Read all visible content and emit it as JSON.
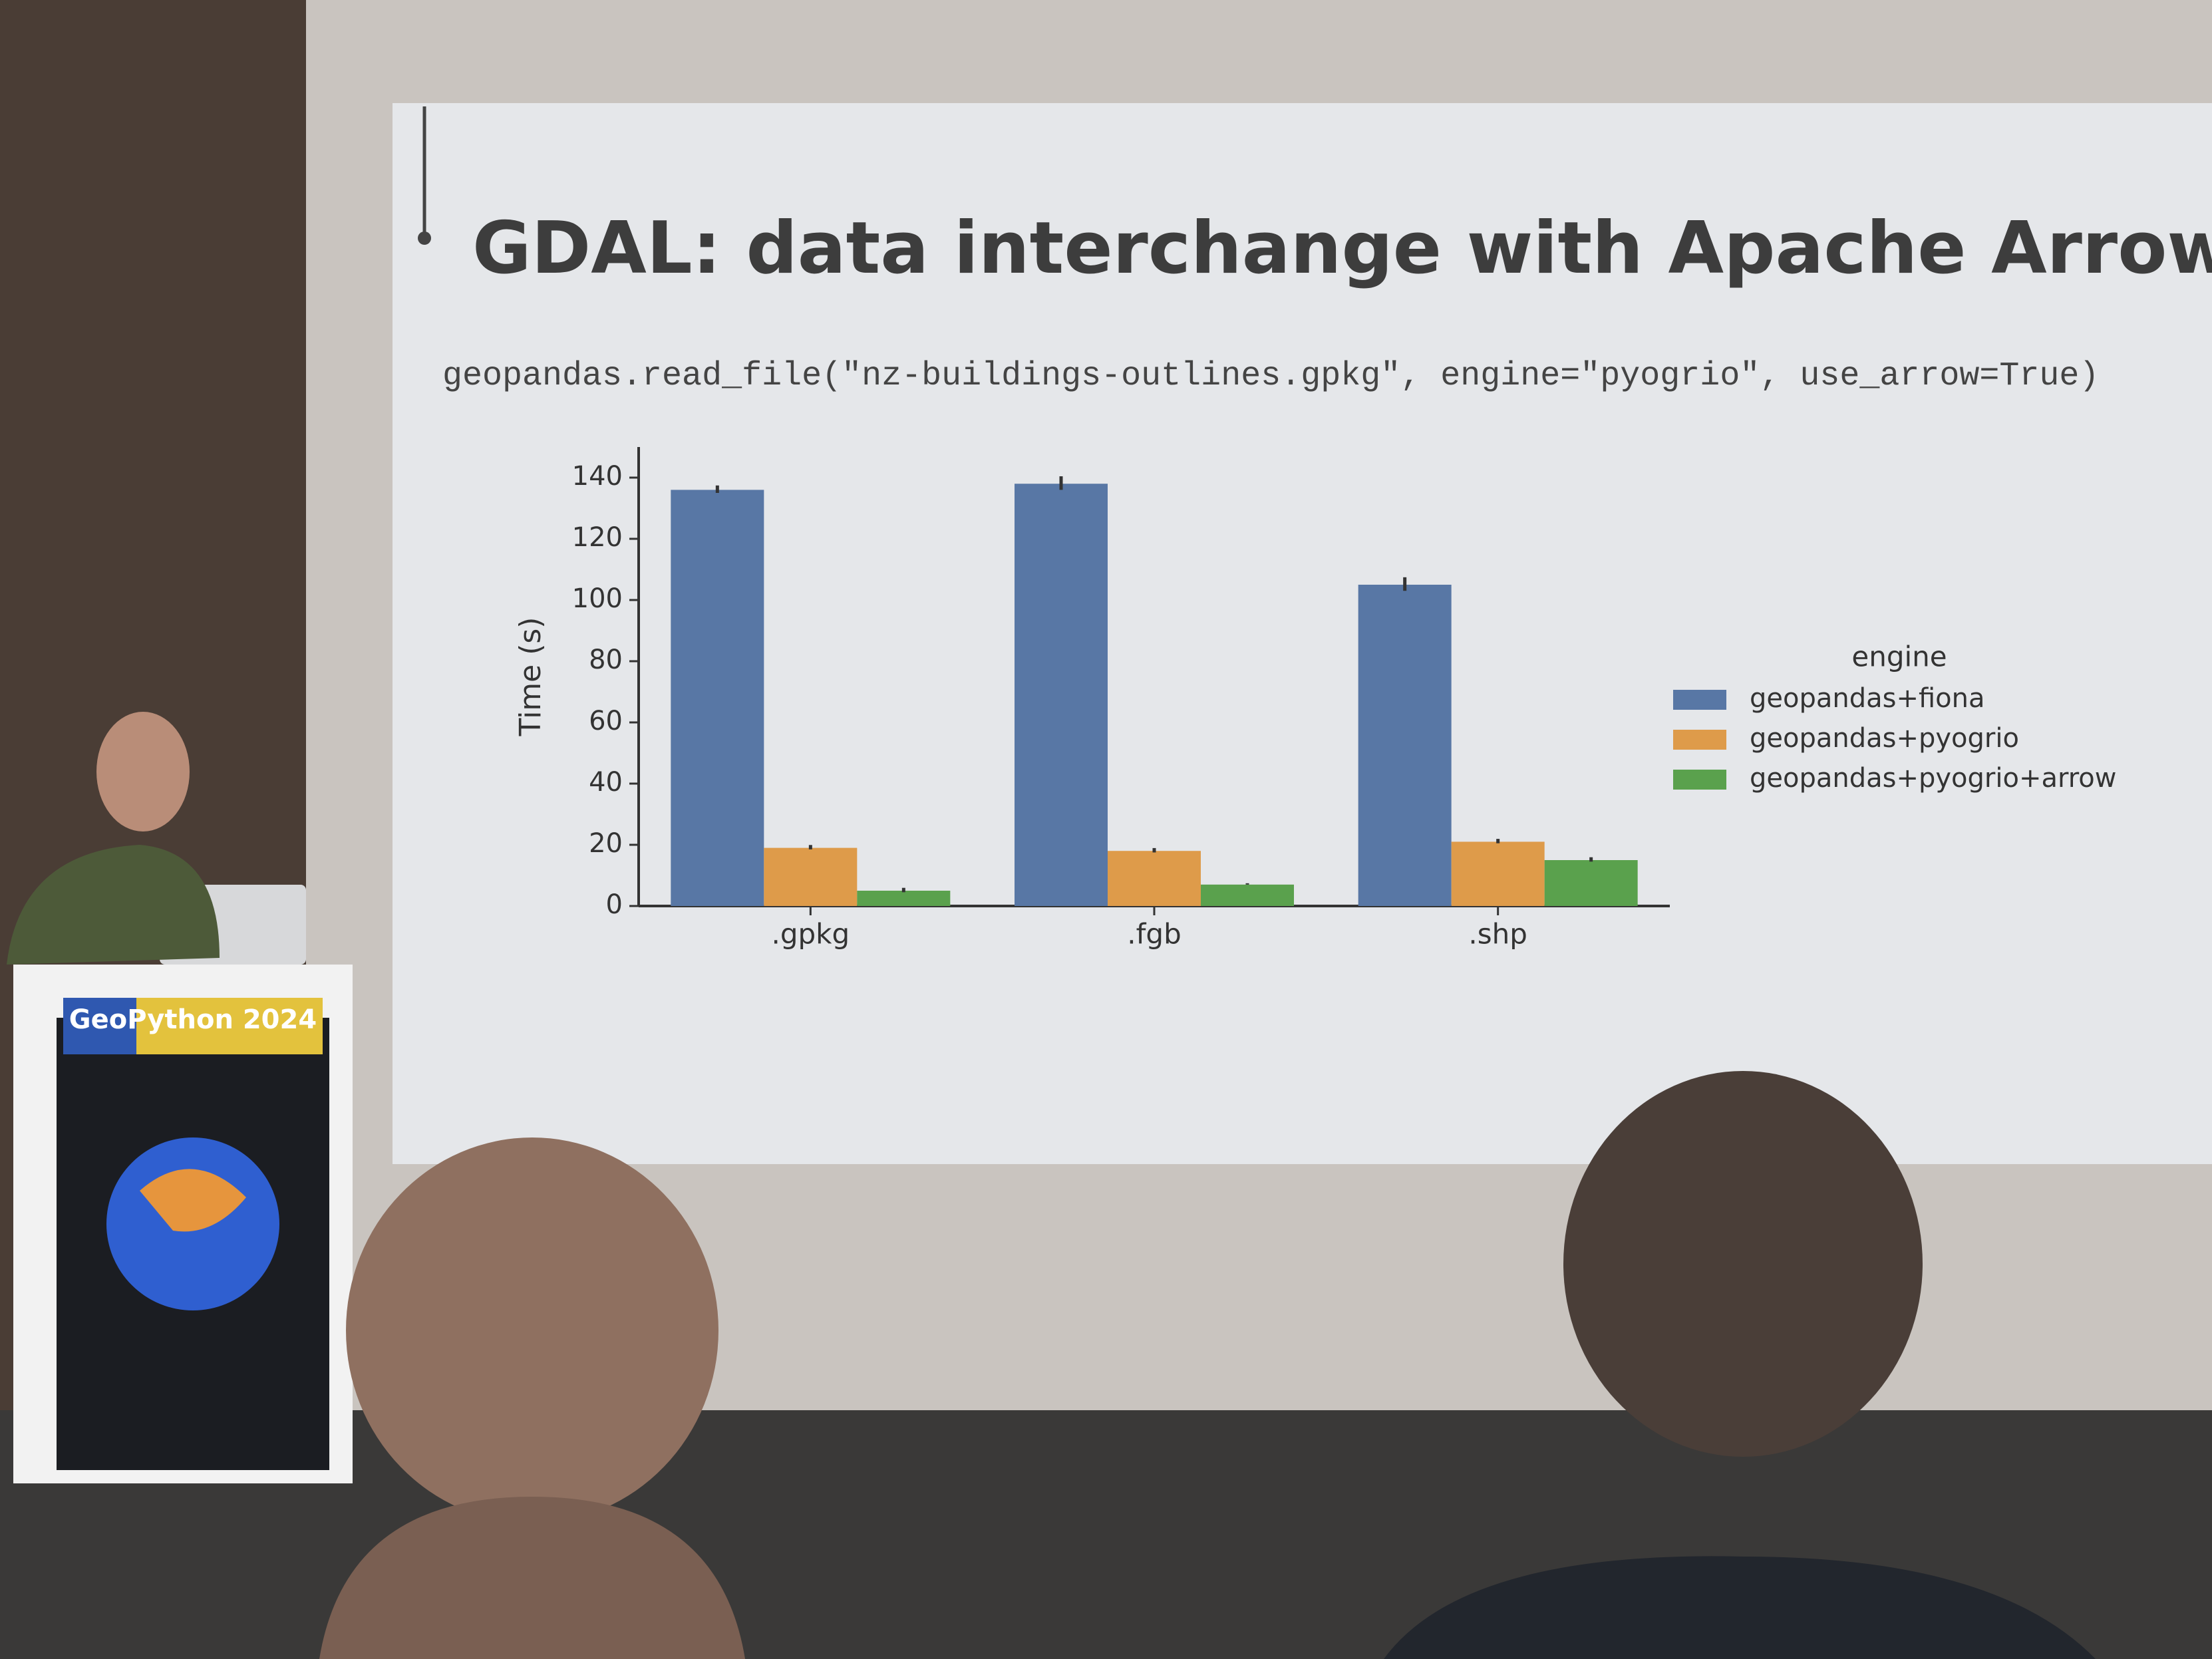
{
  "slide": {
    "title": "GDAL: data interchange with Apache Arrow",
    "code": "geopandas.read_file(\"nz-buildings-outlines.gpkg\", engine=\"pyogrio\", use_arrow=True)"
  },
  "podium": {
    "banner": "GeoPython 2024"
  },
  "chart_data": {
    "type": "bar",
    "ylabel": "Time (s)",
    "legend_title": "engine",
    "legend": "right",
    "categories": [
      ".gpkg",
      ".fgb",
      ".shp"
    ],
    "series": [
      {
        "name": "geopandas+fiona",
        "color": "#5877a5",
        "values": [
          136,
          138,
          105
        ],
        "errors": [
          1,
          2,
          2
        ]
      },
      {
        "name": "geopandas+pyogrio",
        "color": "#de9b4a",
        "values": [
          19,
          18,
          21
        ],
        "errors": [
          0.5,
          0.5,
          0.5
        ]
      },
      {
        "name": "geopandas+pyogrio+arrow",
        "color": "#5aa14d",
        "values": [
          5,
          7,
          15
        ],
        "errors": [
          0.5,
          0,
          0.5
        ]
      }
    ],
    "ylim": [
      0,
      150
    ],
    "yticks": [
      0,
      20,
      40,
      60,
      80,
      100,
      120,
      140
    ]
  }
}
